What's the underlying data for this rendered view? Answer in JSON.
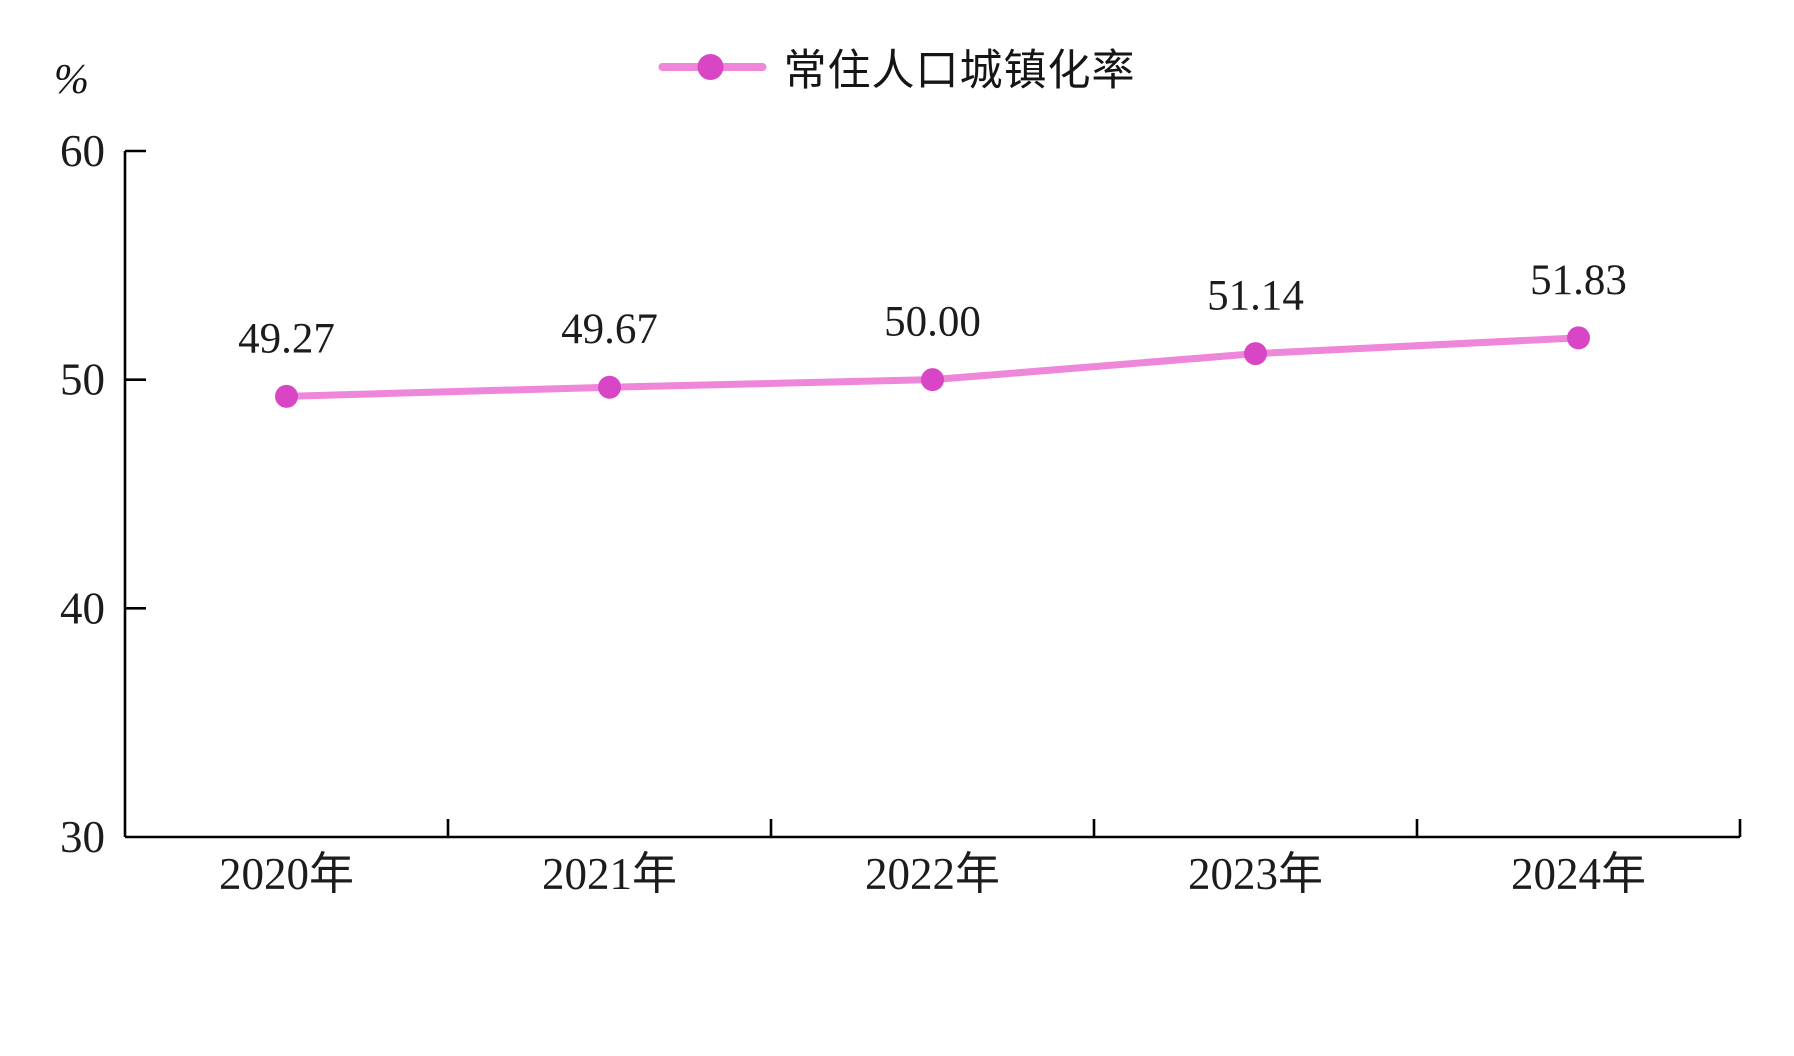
{
  "chart_data": {
    "type": "line",
    "legend": [
      "常住人口城镇化率"
    ],
    "ylabel": "%",
    "categories": [
      "2020年",
      "2021年",
      "2022年",
      "2023年",
      "2024年"
    ],
    "series": [
      {
        "name": "常住人口城镇化率",
        "values": [
          49.27,
          49.67,
          50.0,
          51.14,
          51.83
        ],
        "data_labels": [
          "49.27",
          "49.67",
          "50.00",
          "51.14",
          "51.83"
        ]
      }
    ],
    "ylim": [
      30,
      60
    ],
    "yticks": [
      60,
      50,
      40,
      30
    ],
    "grid": false,
    "legend_position": "top-center",
    "colors": {
      "line": "#ee86da",
      "marker": "#d846c6",
      "axis": "#000000",
      "text": "#1c1c1c"
    }
  }
}
